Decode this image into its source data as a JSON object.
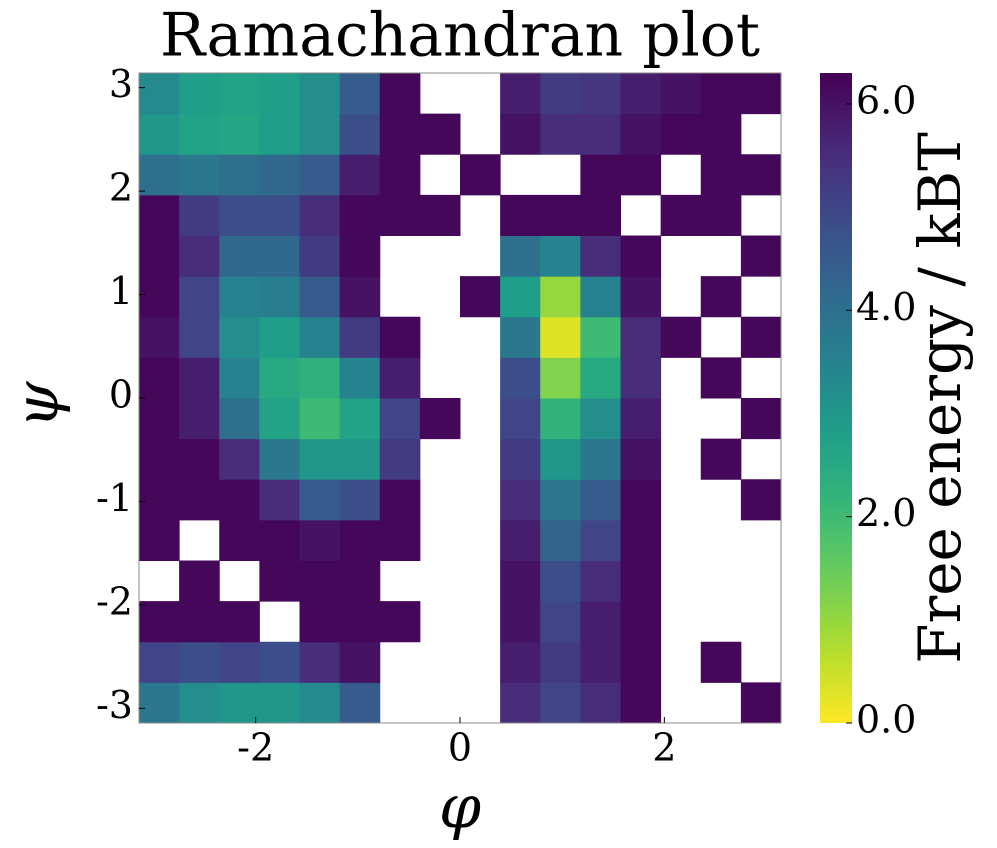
{
  "chart_data": {
    "type": "heatmap",
    "title": "Ramachandran plot",
    "xlabel": "φ",
    "ylabel": "ψ",
    "colorbar_label": "Free energy / kBT",
    "colormap": "viridis_r",
    "xlim": [
      -3.1416,
      3.1416
    ],
    "ylim": [
      -3.1416,
      3.1416
    ],
    "clim": [
      0,
      6.3
    ],
    "xticks": [
      -2,
      0,
      2
    ],
    "yticks": [
      -3,
      -2,
      -1,
      0,
      1,
      2,
      3
    ],
    "cticks": [
      {
        "value": 0,
        "label": "0.0"
      },
      {
        "value": 2,
        "label": "2.0"
      },
      {
        "value": 4,
        "label": "4.0"
      },
      {
        "value": 6,
        "label": "6.0"
      }
    ],
    "xbins": [
      -3.1416,
      -2.7489,
      -2.3562,
      -1.9635,
      -1.5708,
      -1.1781,
      -0.7854,
      -0.3927,
      0,
      0.3927,
      0.7854,
      1.1781,
      1.5708,
      1.9635,
      2.3562,
      2.7489,
      3.1416
    ],
    "ybins": [
      -3.1416,
      -2.7489,
      -2.3562,
      -1.9635,
      -1.5708,
      -1.1781,
      -0.7854,
      -0.3927,
      0,
      0.3927,
      0.7854,
      1.1781,
      1.5708,
      1.9635,
      2.3562,
      2.7489,
      3.1416
    ],
    "values": [
      [
        3.8,
        3.2,
        3.0,
        3.0,
        3.3,
        4.5,
        null,
        null,
        null,
        5.5,
        5.0,
        5.5,
        6.2,
        null,
        null,
        6.2
      ],
      [
        5.0,
        4.8,
        5.0,
        4.8,
        5.5,
        6.0,
        null,
        null,
        null,
        5.8,
        5.2,
        5.8,
        6.2,
        null,
        6.2,
        null
      ],
      [
        6.2,
        6.2,
        6.2,
        null,
        6.2,
        6.2,
        6.2,
        null,
        null,
        6.0,
        5.0,
        5.8,
        6.2,
        null,
        null,
        null
      ],
      [
        null,
        6.2,
        null,
        6.2,
        6.2,
        6.2,
        null,
        null,
        null,
        6.0,
        4.8,
        5.5,
        6.2,
        null,
        null,
        null
      ],
      [
        6.2,
        null,
        6.2,
        6.2,
        6.0,
        6.2,
        6.2,
        null,
        null,
        5.8,
        4.3,
        5.0,
        6.2,
        null,
        null,
        null
      ],
      [
        6.2,
        6.2,
        6.2,
        5.5,
        4.5,
        4.8,
        6.2,
        null,
        null,
        5.5,
        3.8,
        4.5,
        6.2,
        null,
        null,
        6.2
      ],
      [
        6.2,
        6.2,
        5.5,
        3.8,
        3.0,
        3.0,
        5.2,
        null,
        null,
        5.2,
        3.0,
        3.8,
        6.0,
        null,
        6.2,
        null
      ],
      [
        6.2,
        5.8,
        4.0,
        2.7,
        2.0,
        2.7,
        5.0,
        6.2,
        null,
        5.0,
        2.2,
        3.2,
        5.8,
        null,
        null,
        6.2
      ],
      [
        6.2,
        5.8,
        3.5,
        2.5,
        2.3,
        3.5,
        5.8,
        null,
        null,
        4.8,
        1.2,
        2.5,
        5.5,
        null,
        6.2,
        null
      ],
      [
        6.0,
        5.0,
        3.2,
        2.8,
        3.5,
        5.2,
        6.2,
        null,
        null,
        3.8,
        0.3,
        2.0,
        5.5,
        6.2,
        null,
        6.2
      ],
      [
        6.2,
        5.0,
        3.5,
        3.6,
        4.5,
        6.0,
        null,
        null,
        6.2,
        2.8,
        1.0,
        3.5,
        6.0,
        null,
        6.2,
        null
      ],
      [
        6.2,
        5.5,
        4.2,
        4.2,
        5.2,
        6.2,
        null,
        null,
        null,
        4.0,
        3.5,
        5.5,
        6.2,
        null,
        null,
        6.2
      ],
      [
        6.2,
        5.2,
        4.8,
        4.8,
        5.5,
        6.2,
        6.2,
        6.2,
        null,
        6.2,
        6.2,
        6.2,
        null,
        6.2,
        6.2,
        null
      ],
      [
        4.0,
        3.8,
        4.0,
        4.2,
        4.5,
        5.8,
        6.2,
        null,
        6.2,
        null,
        null,
        6.2,
        6.2,
        null,
        6.2,
        6.2
      ],
      [
        3.0,
        2.7,
        2.6,
        2.8,
        3.2,
        4.8,
        6.2,
        6.2,
        null,
        6.0,
        5.5,
        5.5,
        6.0,
        6.2,
        6.2,
        null
      ],
      [
        3.3,
        2.8,
        2.7,
        2.8,
        3.2,
        4.5,
        6.2,
        null,
        null,
        5.8,
        5.2,
        5.3,
        5.8,
        6.0,
        6.2,
        6.2
      ]
    ]
  }
}
